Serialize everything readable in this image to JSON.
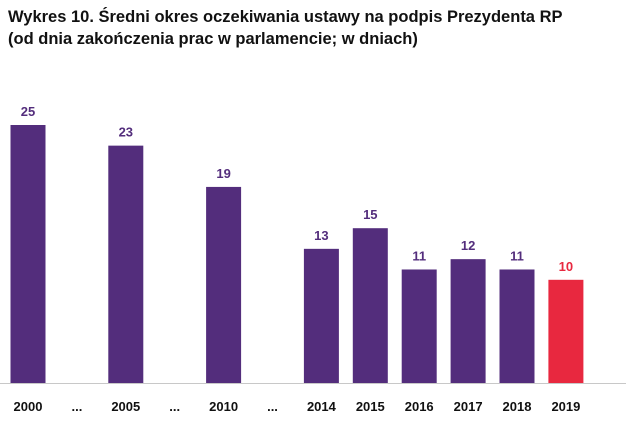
{
  "chart_data": {
    "type": "bar",
    "title": "Wykres 10. Średni okres oczekiwania ustawy na podpis Prezydenta RP",
    "subtitle": "(od dnia zakończenia prac w parlamencie; w dniach)",
    "xlabel": "",
    "ylabel": "",
    "categories": [
      "2000",
      "...",
      "2005",
      "...",
      "2010",
      "...",
      "2014",
      "2015",
      "2016",
      "2017",
      "2018",
      "2019"
    ],
    "values": [
      25,
      null,
      23,
      null,
      19,
      null,
      13,
      15,
      11,
      12,
      11,
      10
    ],
    "ylim": [
      0,
      25
    ],
    "grid": false,
    "legend": "none",
    "colors": {
      "bar": "#532d7c",
      "highlight": "#e8283f",
      "highlight_category": "2019",
      "label": "#532d7c",
      "highlight_label": "#e8283f",
      "axis": "#c8c8c8",
      "tick_text": "#111111"
    }
  }
}
